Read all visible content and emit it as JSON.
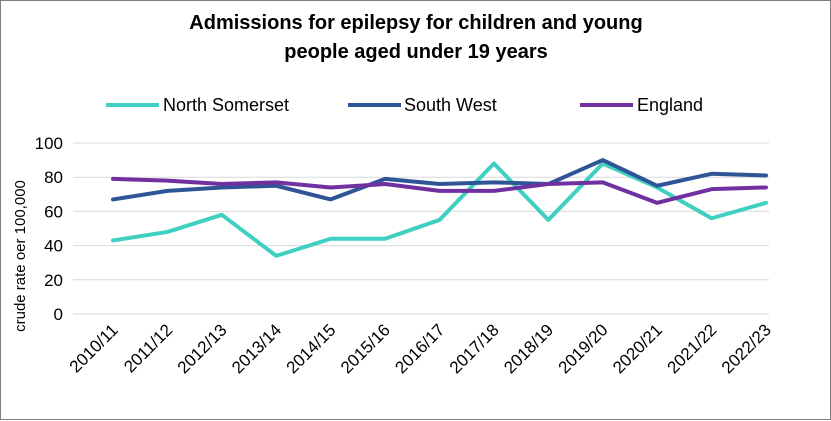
{
  "chart_data": {
    "type": "line",
    "title_lines": [
      "Admissions for epilepsy for children and young",
      "people aged under 19 years"
    ],
    "ylabel": "crude rate oer 100,000",
    "xlabel": "",
    "ylim": [
      0,
      100
    ],
    "yticks": [
      0,
      20,
      40,
      60,
      80,
      100
    ],
    "grid": true,
    "legend_position": "top",
    "categories": [
      "2010/11",
      "2011/12",
      "2012/13",
      "2013/14",
      "2014/15",
      "2015/16",
      "2016/17",
      "2017/18",
      "2018/19",
      "2019/20",
      "2020/21",
      "2021/22",
      "2022/23"
    ],
    "series": [
      {
        "name": "North Somerset",
        "color": "#3fd0c2",
        "values": [
          43,
          48,
          58,
          34,
          44,
          44,
          55,
          88,
          55,
          88,
          74,
          56,
          65
        ]
      },
      {
        "name": "South West",
        "color": "#2f5597",
        "values": [
          67,
          72,
          74,
          75,
          67,
          79,
          76,
          77,
          76,
          90,
          75,
          82,
          81
        ]
      },
      {
        "name": "England",
        "color": "#7030a0",
        "values": [
          79,
          78,
          76,
          77,
          74,
          76,
          72,
          72,
          76,
          77,
          65,
          73,
          74
        ]
      }
    ]
  }
}
